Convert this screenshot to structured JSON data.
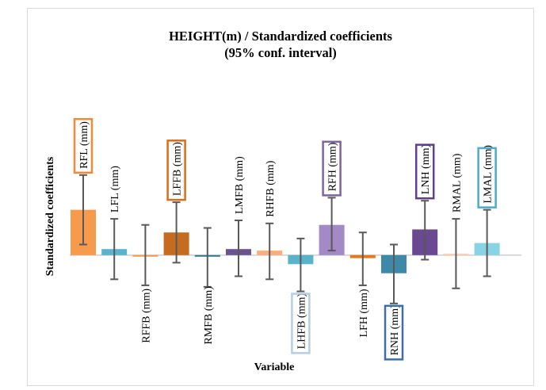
{
  "chart_data": {
    "type": "bar",
    "title": "HEIGHT(m) / Standardized coefficients",
    "subtitle": "(95% conf. interval)",
    "xlabel": "Variable",
    "ylabel": "Standardized coefficients",
    "grid": false,
    "legend": "none",
    "ylim": [
      -0.62,
      1.25
    ],
    "categories": [
      "RFL (mm)",
      "LFL (mm)",
      "RFFB (mm)",
      "LFFB (mm)",
      "RMFB (mm)",
      "LMFB (mm)",
      "RHFB (mm)",
      "LHFB (mm)",
      "RFH (mm)",
      "LFH (mm)",
      "RNH (mm)",
      "LNH (mm)",
      "RMAL (mm)",
      "LMAL (mm)"
    ],
    "values": [
      0.3,
      0.04,
      0.0,
      0.15,
      -0.01,
      0.04,
      0.03,
      -0.06,
      0.2,
      -0.02,
      -0.12,
      0.17,
      0.01,
      0.08
    ],
    "ci_lower": [
      0.07,
      -0.16,
      -0.2,
      -0.05,
      -0.21,
      -0.14,
      -0.16,
      -0.24,
      0.03,
      -0.2,
      -0.32,
      -0.03,
      -0.22,
      -0.14
    ],
    "ci_upper": [
      0.53,
      0.24,
      0.2,
      0.35,
      0.18,
      0.23,
      0.21,
      0.11,
      0.38,
      0.15,
      0.07,
      0.36,
      0.24,
      0.3
    ],
    "colors": [
      "#f5923e",
      "#4bacc6",
      "#f79646",
      "#c0600d",
      "#1f6f8b",
      "#5e4486",
      "#f7a870",
      "#4bacc6",
      "#9b7fc0",
      "#e46c0a",
      "#2c7fa0",
      "#5e3a88",
      "#fbcfae",
      "#7fd0e2"
    ],
    "boxed_labels": {
      "RFL (mm)": "#f08a3a",
      "LFFB (mm)": "#d86e1a",
      "LHFB (mm)": "#b8cce4",
      "RFH (mm)": "#8064a2",
      "RNH (mm)": "#3d6fa5",
      "LNH (mm)": "#5f3f8d",
      "LMAL (mm)": "#4bacc6"
    },
    "label_positions": [
      "top",
      "top",
      "bottom",
      "top",
      "bottom",
      "top",
      "top",
      "bottom",
      "top",
      "bottom",
      "bottom",
      "top",
      "top",
      "top"
    ]
  }
}
